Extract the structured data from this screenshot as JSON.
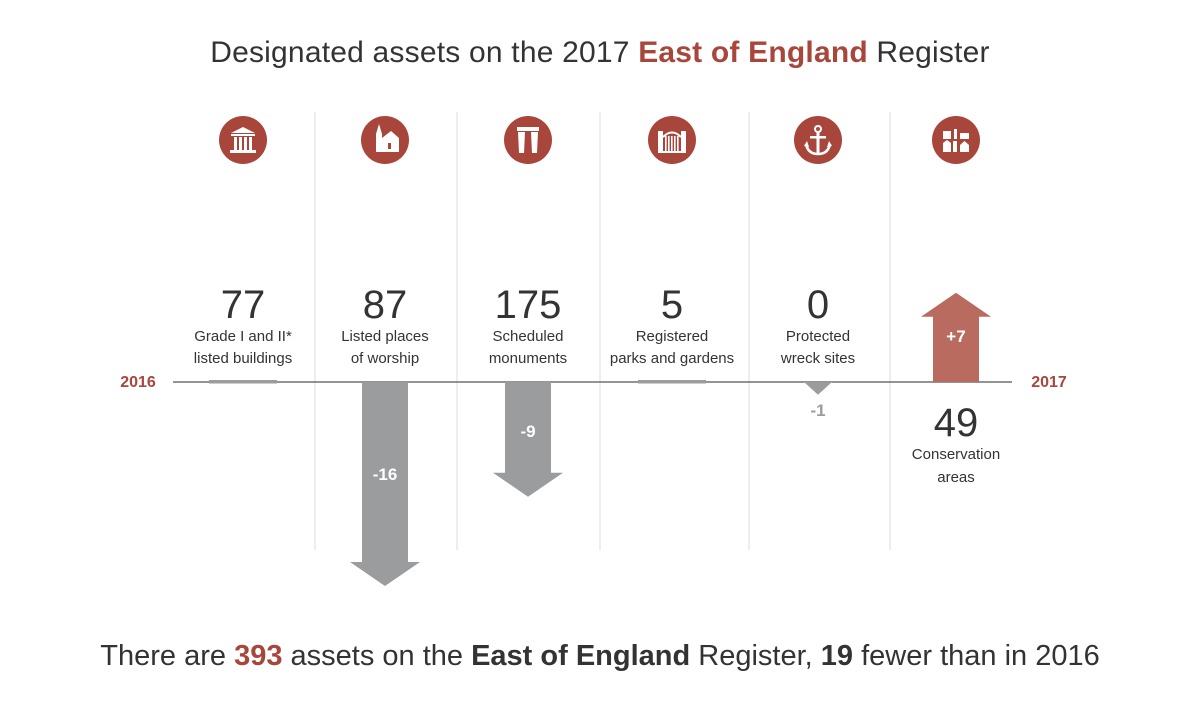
{
  "title": {
    "prefix": "Designated assets on the 2017 ",
    "highlight": "East of England",
    "suffix": " Register"
  },
  "footer": {
    "part1": "There are ",
    "total": "393",
    "part2": " assets on the ",
    "region": "East of England",
    "part3": " Register, ",
    "diff": "19",
    "part4": " fewer than in 2016"
  },
  "colors": {
    "accent": "#a9463c",
    "arrow_up": "#b96b60",
    "arrow_down": "#9b9c9e",
    "baseline": "#555555",
    "divider": "#dddddd",
    "text": "#333333"
  },
  "chart_data": {
    "type": "bar",
    "baseline_left_label": "2016",
    "baseline_right_label": "2017",
    "categories": [
      {
        "icon": "building-icon",
        "count": "77",
        "label_lines": [
          "Grade I and II*",
          "listed buildings"
        ],
        "change": 0,
        "change_label": ""
      },
      {
        "icon": "church-icon",
        "count": "87",
        "label_lines": [
          "Listed places",
          "of worship"
        ],
        "change": -16,
        "change_label": "-16"
      },
      {
        "icon": "monument-icon",
        "count": "175",
        "label_lines": [
          "Scheduled",
          "monuments"
        ],
        "change": -9,
        "change_label": "-9"
      },
      {
        "icon": "gate-icon",
        "count": "5",
        "label_lines": [
          "Registered",
          "parks and gardens"
        ],
        "change": 0,
        "change_label": ""
      },
      {
        "icon": "anchor-icon",
        "count": "0",
        "label_lines": [
          "Protected",
          "wreck sites"
        ],
        "change": -1,
        "change_label": "-1"
      },
      {
        "icon": "townscape-icon",
        "count": "49",
        "label_lines": [
          "Conservation",
          "areas"
        ],
        "change": 7,
        "change_label": "+7"
      }
    ]
  }
}
